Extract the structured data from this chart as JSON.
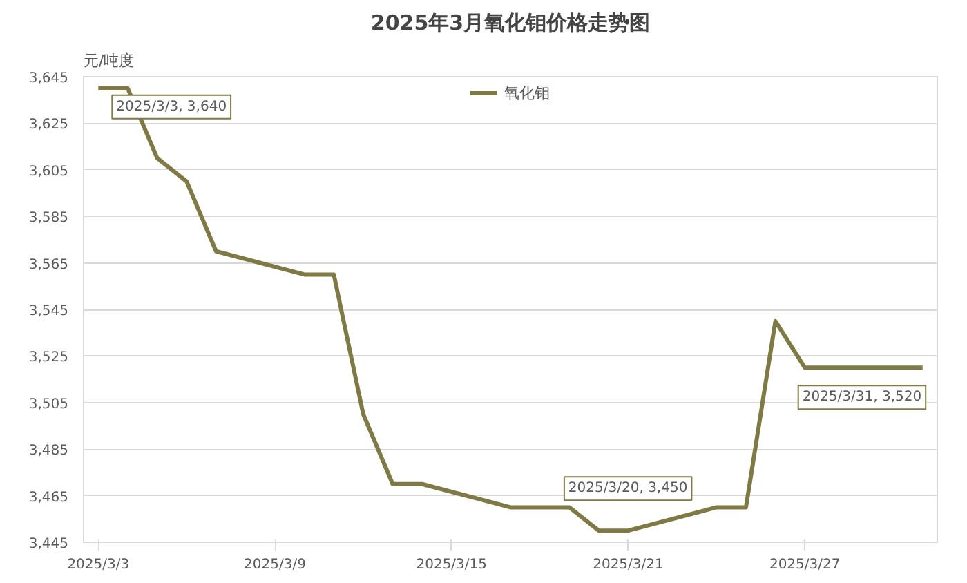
{
  "chart_data": {
    "type": "line",
    "title": "2025年3月氧化钼价格走势图",
    "ylabel": "元/吨度",
    "x": [
      "2025-03-03",
      "2025-03-04",
      "2025-03-05",
      "2025-03-06",
      "2025-03-07",
      "2025-03-10",
      "2025-03-11",
      "2025-03-12",
      "2025-03-13",
      "2025-03-14",
      "2025-03-17",
      "2025-03-18",
      "2025-03-19",
      "2025-03-20",
      "2025-03-21",
      "2025-03-24",
      "2025-03-25",
      "2025-03-26",
      "2025-03-27",
      "2025-03-28",
      "2025-03-31"
    ],
    "series": [
      {
        "name": "氧化钼",
        "color": "#7f7a45",
        "values": [
          3640,
          3640,
          3610,
          3600,
          3570,
          3560,
          3560,
          3500,
          3470,
          3470,
          3460,
          3460,
          3460,
          3450,
          3450,
          3460,
          3460,
          3540,
          3520,
          3520,
          3520
        ]
      }
    ],
    "xlim": [
      "2025-03-02T12:00",
      "2025-03-31T12:00"
    ],
    "xticks": [
      {
        "value": "2025-03-03",
        "label": "2025/3/3"
      },
      {
        "value": "2025-03-09",
        "label": "2025/3/9"
      },
      {
        "value": "2025-03-15",
        "label": "2025/3/15"
      },
      {
        "value": "2025-03-21",
        "label": "2025/3/21"
      },
      {
        "value": "2025-03-27",
        "label": "2025/3/27"
      }
    ],
    "ylim": [
      3445,
      3645
    ],
    "yticks": [
      {
        "value": 3445,
        "label": "3,445"
      },
      {
        "value": 3465,
        "label": "3,465"
      },
      {
        "value": 3485,
        "label": "3,485"
      },
      {
        "value": 3505,
        "label": "3,505"
      },
      {
        "value": 3525,
        "label": "3,525"
      },
      {
        "value": 3545,
        "label": "3,545"
      },
      {
        "value": 3565,
        "label": "3,565"
      },
      {
        "value": 3585,
        "label": "3,585"
      },
      {
        "value": 3605,
        "label": "3,605"
      },
      {
        "value": 3625,
        "label": "3,625"
      },
      {
        "value": 3645,
        "label": "3,645"
      }
    ],
    "annotations": [
      {
        "text": "2025/3/3, 3,640",
        "x": "2025-03-03",
        "y": 3640
      },
      {
        "text": "2025/3/20, 3,450",
        "x": "2025-03-20",
        "y": 3450
      },
      {
        "text": "2025/3/31, 3,520",
        "x": "2025-03-31",
        "y": 3520
      }
    ],
    "grid": "y",
    "legend": "top",
    "line_style": "solid",
    "marker": "none"
  }
}
